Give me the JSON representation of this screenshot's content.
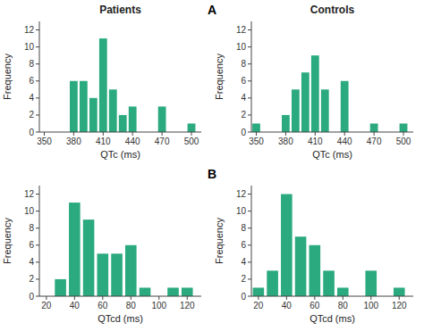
{
  "chart_data": [
    {
      "type": "bar",
      "title": "Patients",
      "x": [
        380,
        390,
        400,
        410,
        420,
        430,
        440,
        450,
        460,
        470,
        480,
        490,
        500
      ],
      "values": [
        6,
        6,
        4,
        11,
        5,
        2,
        3,
        0,
        0,
        3,
        0,
        0,
        1
      ],
      "color": "#2aaa7e",
      "xlabel": "QTc (ms)",
      "ylabel": "Frequency",
      "xlim": [
        345,
        510
      ],
      "ylim": [
        0,
        13
      ],
      "xticks": [
        350,
        380,
        410,
        440,
        470,
        500
      ],
      "yticks": [
        0,
        2,
        4,
        6,
        8,
        10,
        12
      ],
      "annotations": [
        "A"
      ],
      "grid": false
    },
    {
      "type": "bar",
      "title": "Controls",
      "x": [
        350,
        360,
        370,
        380,
        390,
        400,
        410,
        420,
        430,
        440,
        450,
        460,
        470,
        480,
        490,
        500
      ],
      "values": [
        1,
        0,
        0,
        2,
        5,
        7,
        9,
        5,
        0,
        6,
        0,
        0,
        1,
        0,
        0,
        1
      ],
      "color": "#2aaa7e",
      "xlabel": "QTc (ms)",
      "ylabel": "Frequency",
      "xlim": [
        345,
        510
      ],
      "ylim": [
        0,
        13
      ],
      "xticks": [
        350,
        380,
        410,
        440,
        470,
        500
      ],
      "yticks": [
        0,
        2,
        4,
        6,
        8,
        10,
        12
      ],
      "grid": false
    },
    {
      "type": "bar",
      "x": [
        20,
        30,
        40,
        50,
        60,
        70,
        80,
        90,
        100,
        110,
        120
      ],
      "values": [
        0,
        2,
        11,
        9,
        5,
        5,
        6,
        1,
        0,
        1,
        1
      ],
      "color": "#2aaa7e",
      "xlabel": "QTcd (ms)",
      "ylabel": "Frequency",
      "xlim": [
        15,
        130
      ],
      "ylim": [
        0,
        13
      ],
      "xticks": [
        20,
        40,
        60,
        80,
        100,
        120
      ],
      "yticks": [
        0,
        2,
        4,
        6,
        8,
        10,
        12
      ],
      "annotations": [
        "B"
      ],
      "grid": false
    },
    {
      "type": "bar",
      "x": [
        20,
        30,
        40,
        50,
        60,
        70,
        80,
        90,
        100,
        110,
        120
      ],
      "values": [
        1,
        3,
        12,
        7,
        6,
        3,
        1,
        0,
        3,
        0,
        1
      ],
      "color": "#2aaa7e",
      "xlabel": "QTcd (ms)",
      "ylabel": "Frequency",
      "xlim": [
        15,
        130
      ],
      "ylim": [
        0,
        13
      ],
      "xticks": [
        20,
        40,
        60,
        80,
        100,
        120
      ],
      "yticks": [
        0,
        2,
        4,
        6,
        8,
        10,
        12
      ],
      "grid": false
    }
  ]
}
